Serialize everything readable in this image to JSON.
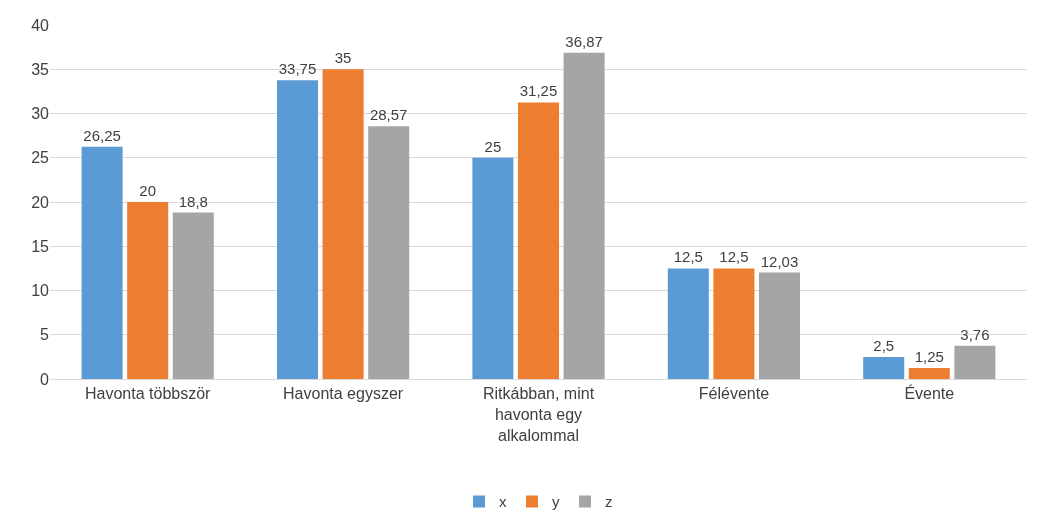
{
  "chart_data": {
    "type": "bar",
    "categories": [
      "Havonta többször",
      "Havonta egyszer",
      "Ritkábban, mint havonta egy alkalommal",
      "Félévente",
      "Évente"
    ],
    "series": [
      {
        "name": "x",
        "color": "#5b9bd5",
        "values": [
          26.25,
          33.75,
          25,
          12.5,
          2.5
        ],
        "value_labels": [
          "26,25",
          "33,75",
          "25",
          "12,5",
          "2,5"
        ]
      },
      {
        "name": "y",
        "color": "#ed7d31",
        "values": [
          20,
          35,
          31.25,
          12.5,
          1.25
        ],
        "value_labels": [
          "20",
          "35",
          "31,25",
          "12,5",
          "1,25"
        ]
      },
      {
        "name": "z",
        "color": "#a5a5a5",
        "values": [
          18.8,
          28.57,
          36.87,
          12.03,
          3.76
        ],
        "value_labels": [
          "18,8",
          "28,57",
          "36,87",
          "12,03",
          "3,76"
        ]
      }
    ],
    "ylim": [
      0,
      40
    ],
    "yticks": [
      0,
      5,
      10,
      15,
      20,
      25,
      30,
      35,
      40
    ],
    "grid": "y",
    "legend": "bottom"
  }
}
